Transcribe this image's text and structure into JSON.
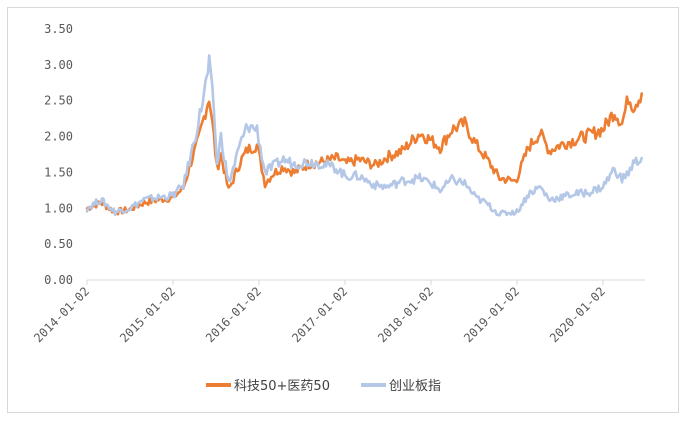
{
  "chart_data": {
    "type": "line",
    "title": "",
    "xlabel": "",
    "ylabel": "",
    "ylim": [
      0,
      3.5
    ],
    "y_ticks": [
      "0.00",
      "0.50",
      "1.00",
      "1.50",
      "2.00",
      "2.50",
      "3.00",
      "3.50"
    ],
    "x_ticks": [
      "2014-01-02",
      "2015-01-02",
      "2016-01-02",
      "2017-01-02",
      "2018-01-02",
      "2019-01-02",
      "2020-01-02"
    ],
    "grid": false,
    "legend_position": "bottom",
    "series": [
      {
        "name": "科技50+医药50",
        "color": "#ed7d31",
        "points": [
          [
            "2014-01-02",
            1.0
          ],
          [
            "2014-03-01",
            1.08
          ],
          [
            "2014-05-01",
            0.95
          ],
          [
            "2014-07-01",
            0.98
          ],
          [
            "2014-09-01",
            1.08
          ],
          [
            "2014-11-01",
            1.12
          ],
          [
            "2015-01-02",
            1.15
          ],
          [
            "2015-02-15",
            1.28
          ],
          [
            "2015-03-20",
            1.65
          ],
          [
            "2015-04-20",
            1.95
          ],
          [
            "2015-05-20",
            2.35
          ],
          [
            "2015-06-05",
            2.55
          ],
          [
            "2015-06-25",
            2.0
          ],
          [
            "2015-07-08",
            1.55
          ],
          [
            "2015-07-25",
            1.75
          ],
          [
            "2015-08-26",
            1.25
          ],
          [
            "2015-09-15",
            1.4
          ],
          [
            "2015-10-15",
            1.65
          ],
          [
            "2015-11-15",
            1.82
          ],
          [
            "2015-12-25",
            1.88
          ],
          [
            "2016-01-28",
            1.35
          ],
          [
            "2016-03-01",
            1.48
          ],
          [
            "2016-04-15",
            1.58
          ],
          [
            "2016-06-01",
            1.5
          ],
          [
            "2016-08-01",
            1.62
          ],
          [
            "2016-10-01",
            1.65
          ],
          [
            "2016-12-01",
            1.7
          ],
          [
            "2017-01-02",
            1.62
          ],
          [
            "2017-03-01",
            1.68
          ],
          [
            "2017-05-10",
            1.6
          ],
          [
            "2017-07-01",
            1.72
          ],
          [
            "2017-09-01",
            1.8
          ],
          [
            "2017-11-15",
            2.05
          ],
          [
            "2018-01-02",
            1.95
          ],
          [
            "2018-02-10",
            1.85
          ],
          [
            "2018-04-01",
            2.1
          ],
          [
            "2018-05-25",
            2.18
          ],
          [
            "2018-07-10",
            1.9
          ],
          [
            "2018-08-20",
            1.72
          ],
          [
            "2018-10-20",
            1.42
          ],
          [
            "2018-12-20",
            1.38
          ],
          [
            "2019-01-02",
            1.42
          ],
          [
            "2019-02-20",
            1.85
          ],
          [
            "2019-04-10",
            2.05
          ],
          [
            "2019-05-20",
            1.8
          ],
          [
            "2019-07-01",
            1.88
          ],
          [
            "2019-09-01",
            1.95
          ],
          [
            "2019-11-01",
            2.02
          ],
          [
            "2020-01-02",
            2.1
          ],
          [
            "2020-02-20",
            2.35
          ],
          [
            "2020-03-23",
            2.18
          ],
          [
            "2020-04-20",
            2.55
          ],
          [
            "2020-05-10",
            2.42
          ],
          [
            "2020-06-15",
            2.6
          ]
        ]
      },
      {
        "name": "创业板指",
        "color": "#b4c7e7",
        "points": [
          [
            "2014-01-02",
            1.0
          ],
          [
            "2014-03-01",
            1.12
          ],
          [
            "2014-05-01",
            0.95
          ],
          [
            "2014-07-01",
            1.0
          ],
          [
            "2014-09-01",
            1.12
          ],
          [
            "2014-11-01",
            1.15
          ],
          [
            "2015-01-02",
            1.18
          ],
          [
            "2015-02-15",
            1.32
          ],
          [
            "2015-03-20",
            1.75
          ],
          [
            "2015-04-20",
            2.2
          ],
          [
            "2015-05-20",
            2.7
          ],
          [
            "2015-06-05",
            3.0
          ],
          [
            "2015-06-25",
            2.4
          ],
          [
            "2015-07-08",
            1.6
          ],
          [
            "2015-07-25",
            2.0
          ],
          [
            "2015-08-26",
            1.35
          ],
          [
            "2015-09-15",
            1.55
          ],
          [
            "2015-10-15",
            1.9
          ],
          [
            "2015-11-15",
            2.15
          ],
          [
            "2015-12-25",
            2.1
          ],
          [
            "2016-01-28",
            1.5
          ],
          [
            "2016-03-01",
            1.58
          ],
          [
            "2016-04-15",
            1.68
          ],
          [
            "2016-06-01",
            1.62
          ],
          [
            "2016-08-01",
            1.65
          ],
          [
            "2016-10-01",
            1.62
          ],
          [
            "2016-12-01",
            1.55
          ],
          [
            "2017-01-02",
            1.45
          ],
          [
            "2017-03-01",
            1.45
          ],
          [
            "2017-05-10",
            1.32
          ],
          [
            "2017-07-01",
            1.3
          ],
          [
            "2017-09-01",
            1.38
          ],
          [
            "2017-11-15",
            1.42
          ],
          [
            "2018-01-02",
            1.35
          ],
          [
            "2018-02-10",
            1.25
          ],
          [
            "2018-04-01",
            1.4
          ],
          [
            "2018-05-25",
            1.35
          ],
          [
            "2018-07-10",
            1.15
          ],
          [
            "2018-08-20",
            1.08
          ],
          [
            "2018-10-20",
            0.92
          ],
          [
            "2018-12-20",
            0.95
          ],
          [
            "2019-01-02",
            0.95
          ],
          [
            "2019-02-20",
            1.2
          ],
          [
            "2019-04-10",
            1.3
          ],
          [
            "2019-05-20",
            1.12
          ],
          [
            "2019-07-01",
            1.15
          ],
          [
            "2019-09-01",
            1.2
          ],
          [
            "2019-11-01",
            1.22
          ],
          [
            "2020-01-02",
            1.3
          ],
          [
            "2020-02-20",
            1.55
          ],
          [
            "2020-03-23",
            1.4
          ],
          [
            "2020-04-20",
            1.5
          ],
          [
            "2020-05-10",
            1.62
          ],
          [
            "2020-06-15",
            1.7
          ]
        ]
      }
    ]
  }
}
